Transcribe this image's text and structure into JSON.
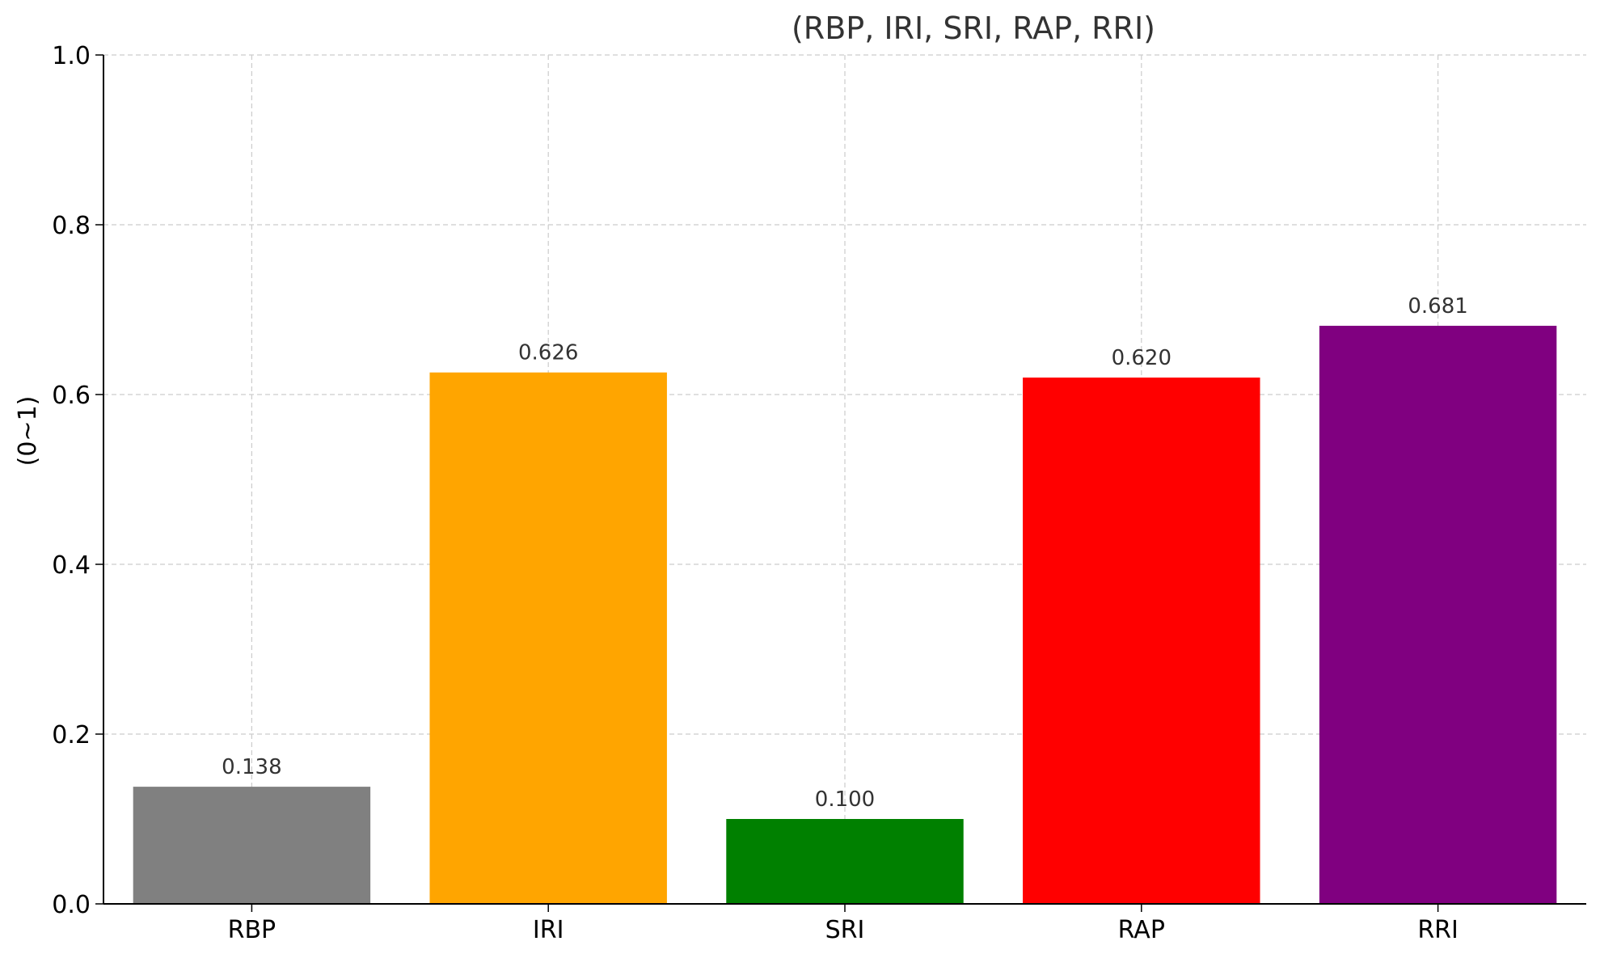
{
  "chart_data": {
    "type": "bar",
    "title": "(RBP, IRI, SRI, RAP, RRI)",
    "ylabel": "(0~1)",
    "xlabel": "",
    "categories": [
      "RBP",
      "IRI",
      "SRI",
      "RAP",
      "RRI"
    ],
    "values": [
      0.138,
      0.626,
      0.1,
      0.62,
      0.681
    ],
    "data_labels": [
      "0.138",
      "0.626",
      "0.100",
      "0.620",
      "0.681"
    ],
    "colors": [
      "#808080",
      "#FFA500",
      "#008000",
      "#FF0000",
      "#800080"
    ],
    "ylim": [
      0,
      1.0
    ],
    "yticks": [
      0.0,
      0.2,
      0.4,
      0.6,
      0.8,
      1.0
    ],
    "ytick_labels": [
      "0.0",
      "0.2",
      "0.4",
      "0.6",
      "0.8",
      "1.0"
    ],
    "grid": true,
    "grid_color": "#cccccc"
  }
}
